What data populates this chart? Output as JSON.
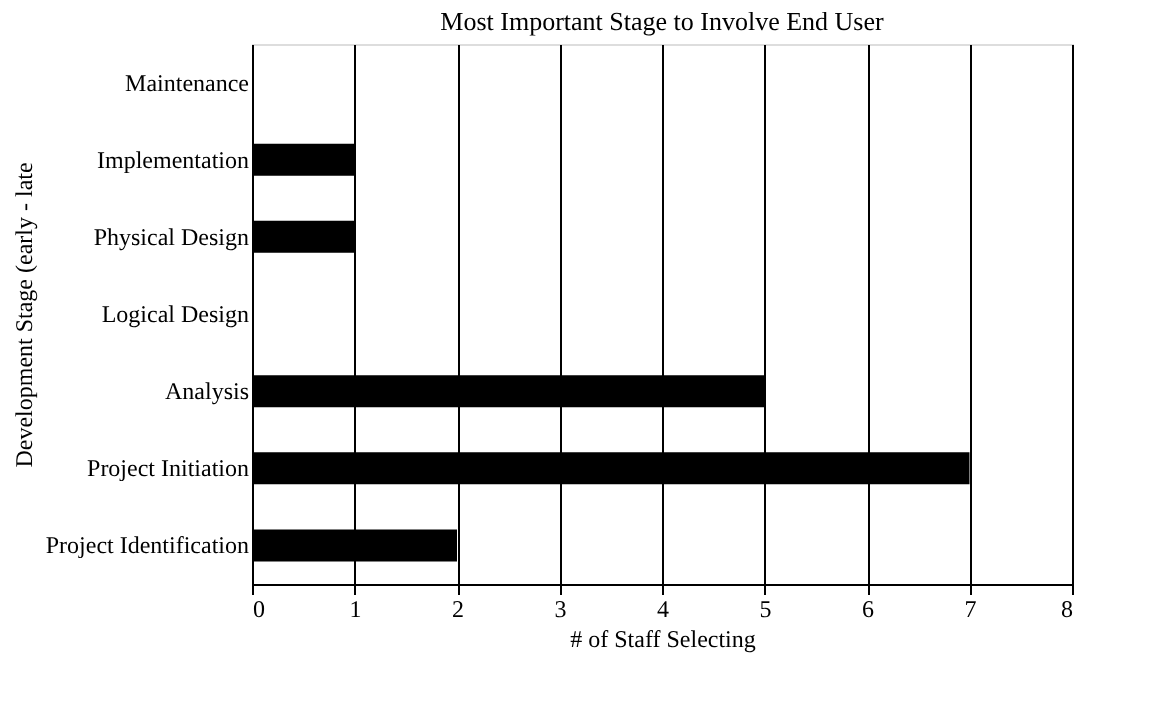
{
  "chart_data": {
    "type": "bar",
    "orientation": "horizontal",
    "title": "Most Important Stage to Involve End User",
    "xlabel": "# of Staff Selecting",
    "ylabel": "Development Stage (early - late",
    "categories": [
      "Maintenance",
      "Implementation",
      "Physical Design",
      "Logical Design",
      "Analysis",
      "Project Initiation",
      "Project Identification"
    ],
    "values": [
      0,
      1,
      1,
      0,
      5,
      7,
      2
    ],
    "color": "#000000",
    "xlim": [
      0,
      8
    ],
    "xticks": [
      0,
      1,
      2,
      3,
      4,
      5,
      6,
      7,
      8
    ],
    "grid": "x"
  }
}
